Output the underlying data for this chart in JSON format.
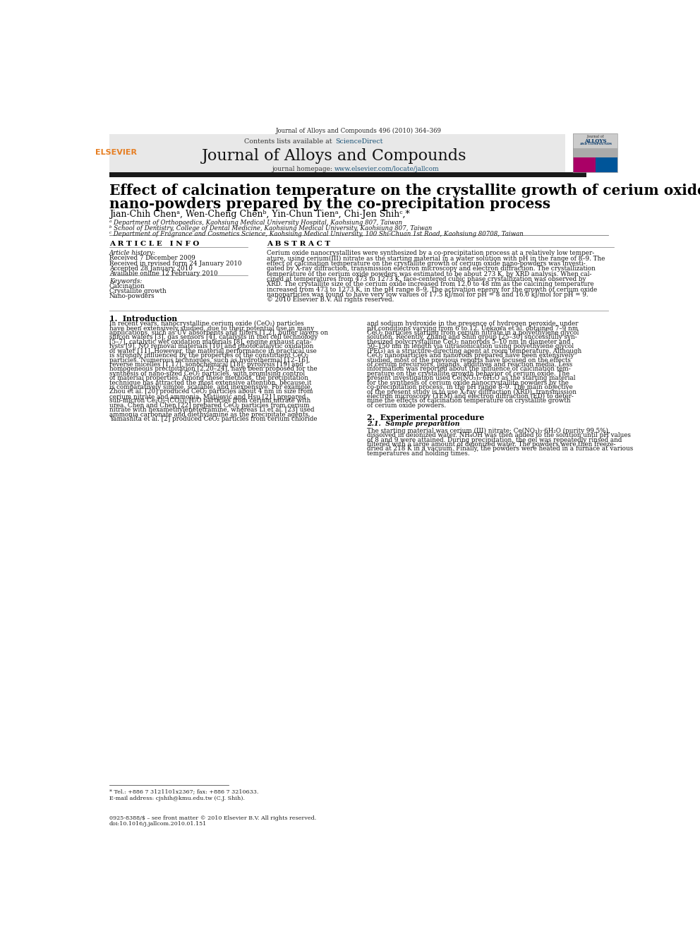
{
  "page_width": 9.92,
  "page_height": 13.23,
  "bg_color": "#ffffff",
  "top_journal_line": "Journal of Alloys and Compounds 496 (2010) 364–369",
  "contents_line": "Contents lists available at ",
  "science_direct": "ScienceDirect",
  "journal_title": "Journal of Alloys and Compounds",
  "journal_homepage": "journal homepage: www.elsevier.com/locate/jallcom",
  "paper_title_line1": "Effect of calcination temperature on the crystallite growth of cerium oxide",
  "paper_title_line2": "nano-powders prepared by the co-precipitation process",
  "authors": "Jian-Chih Chenᵃ, Wen-Cheng Chenᵇ, Yin-Chun Tienᵃ, Chi-Jen Shihᶜ,*",
  "affil_a": "ᵃ Department of Orthopaedics, Kaohsiung Medical University Hospital, Kaohsiung 807, Taiwan",
  "affil_b": "ᵇ School of Dentistry, College of Dental Medicine, Kaohsiung Medical University, Kaohsiung 807, Taiwan",
  "affil_c": "ᶜ Department of Fragrance and Cosmetics Science, Kaohsiung Medical University, 100 Shi-Chuan 1st Road, Kaohsiung 80708, Taiwan",
  "article_info_header": "A R T I C L E   I N F O",
  "abstract_header": "A B S T R A C T",
  "article_history_label": "Article history:",
  "received1": "Received 7 December 2009",
  "received2": "Received in revised form 24 January 2010",
  "accepted": "Accepted 28 January 2010",
  "available": "Available online 12 February 2010",
  "keywords_label": "Keywords:",
  "kw1": "Calcination",
  "kw2": "Crystallite growth",
  "kw3": "Nano-powders",
  "intro_header": "1.  Introduction",
  "section2_header": "2.  Experimental procedure",
  "section21_header": "2.1.  Sample preparation",
  "footnote_tel": "* Tel.: +886 7 3121101x2367; fax: +886 7 3210633.",
  "footnote_email": "E-mail address: cjshih@kmu.edu.tw (C.J. Shih).",
  "footer_issn": "0925-8388/$ – see front matter © 2010 Elsevier B.V. All rights reserved.",
  "footer_doi": "doi:10.1016/j.jallcom.2010.01.151",
  "header_bg": "#e8e8e8",
  "black_bar": "#1a1a1a",
  "blue_link": "#1a5276",
  "elsevier_orange": "#e67e22",
  "abstract_lines": [
    "Cerium oxide nanocrystallites were synthesized by a co-precipitation process at a relatively low temper-",
    "ature, using cerium(III) nitrate as the starting material in a water solution with pH in the range of 8–9. The",
    "effect of calcination temperature on the crystallite growth of cerium oxide nano-powders was investi-",
    "gated by X-ray diffraction, transmission electron microscopy and electron diffraction. The crystallization",
    "temperature of the cerium oxide powders was estimated to be about 273 K, by XRD analysis. When cal-",
    "cined at temperatures from 473 to 1273 K, face-centered cubic phase crystallization was observed by",
    "XRD. The crystallite size of the cerium oxide increased from 12.0 to 48 nm as the calcining temperature",
    "increased from 473 to 1273 K, in the pH range 8–9. The activation energy for the growth of cerium oxide",
    "nanoparticles was found to have very low values of 17.5 kJ/mol for pH = 8 and 16.0 kJ/mol for pH = 9.",
    "© 2010 Elsevier B.V. All rights reserved."
  ],
  "intro_lines": [
    "In recent years, nanocrystalline cerium oxide (CeO₂) particles",
    "have been extensively studied, due to their potential use in many",
    "applications, such as UV absorbents and filters [1,2], buffer layers on",
    "silicon wafers [3], gas sensors [4], catalysts in fuel cell technology",
    "[5–7], catalytic wet oxidation materials [8], engine exhaust cata-",
    "lysts [9], NO removal materials [10] and photocatalytic oxidation",
    "of water [11]. However, the material performance in practical use",
    "is strongly influenced by the properties of the constituent CeO₂",
    "particles. Numerous techniques, such as hydrothermal [12–16],",
    "reverse micelles [1,17], sonochemical [18], pyrolysis [19] and",
    "homogeneous precipitation [2,20–24], have been proposed for the",
    "synthesis of nano-sized CeO₂ particles, with promising control",
    "of material properties. Among these methods, the precipitation",
    "technique has attracted the most extensive attention, because it",
    "is comparatively simple, scalable, and inexpensive. For example,",
    "Zhou et al. [20] produced CeO₂ particles about 4 nm in size from",
    "cerium nitrate and ammonia. Matijević and Hsu [21] prepared",
    "sub-micron Ce₂O₃-(CO₃)₂·H₂O particles from cerium nitrate with",
    "urea. Chen and Chen [22] prepared CeO₂ particles from cerium",
    "nitrate with hexamethylenetetramine, whereas Li et al. [23] used",
    "ammonia carbonate and diethylamine as the precipitate agents.",
    "Yamashita et al. [2] produced CeO₂ particles from cerium chloride"
  ],
  "right_lines": [
    "and sodium hydroxide in the presence of hydrogen peroxide, under",
    "pH conditions varying from 6 to 12. Uekawa et al. obtained 7–9 nm",
    "CeO₂ particles starting from cerium nitrate in a polyethylene glycol",
    "solution. Recently, Zhang and Shih group [25–30] successfully syn-",
    "thesized polycrystalline CeO₂ nanorods 5–10 nm in diameter and",
    "50–150 nm in length via ultrasonication using polyethylene glycol",
    "(PEG) as a structure-directing agent at room temperature. Although",
    "CeO₂ nanoparticles and nanorods prepared have been extensively",
    "studied, most of the previous reports have focused on the effects",
    "of cerium precursors, ligands, additives and reaction media. Less",
    "information was reported about the influence of calcination tem-",
    "perature on the crystallite growth behavior of cerium oxide. The",
    "present investigation used Ce(NO₃)₃·6H₂O as the starting material",
    "for the synthesis of cerium oxide nanocrystallite powders by the",
    "co-precipitation process, in the pH range 8–9. The main objective",
    "of the present study is to use X-ray diffraction (XRD), transmission",
    "electron microscopy (TEM) and electron diffraction (ED) to deter-",
    "mine the effects of calcination temperature on crystallite growth",
    "of cerium oxide powders."
  ],
  "sec21_lines": [
    "The starting material was cerium (III) nitrate; Ce(NO₃)₃·6H₂O (purity 99.5%),",
    "dissolved in deionized water. NH₄OH was then added to the solution until pH values",
    "of 8 and 9 were attained. During precipitation, the gel was repeatedly rinsed and",
    "filtered with a large amount of deionized water. The powders were then freeze-",
    "dried at 218 K in a vacuum. Finally, the powders were heated in a furnace at various",
    "temperatures and holding times."
  ]
}
